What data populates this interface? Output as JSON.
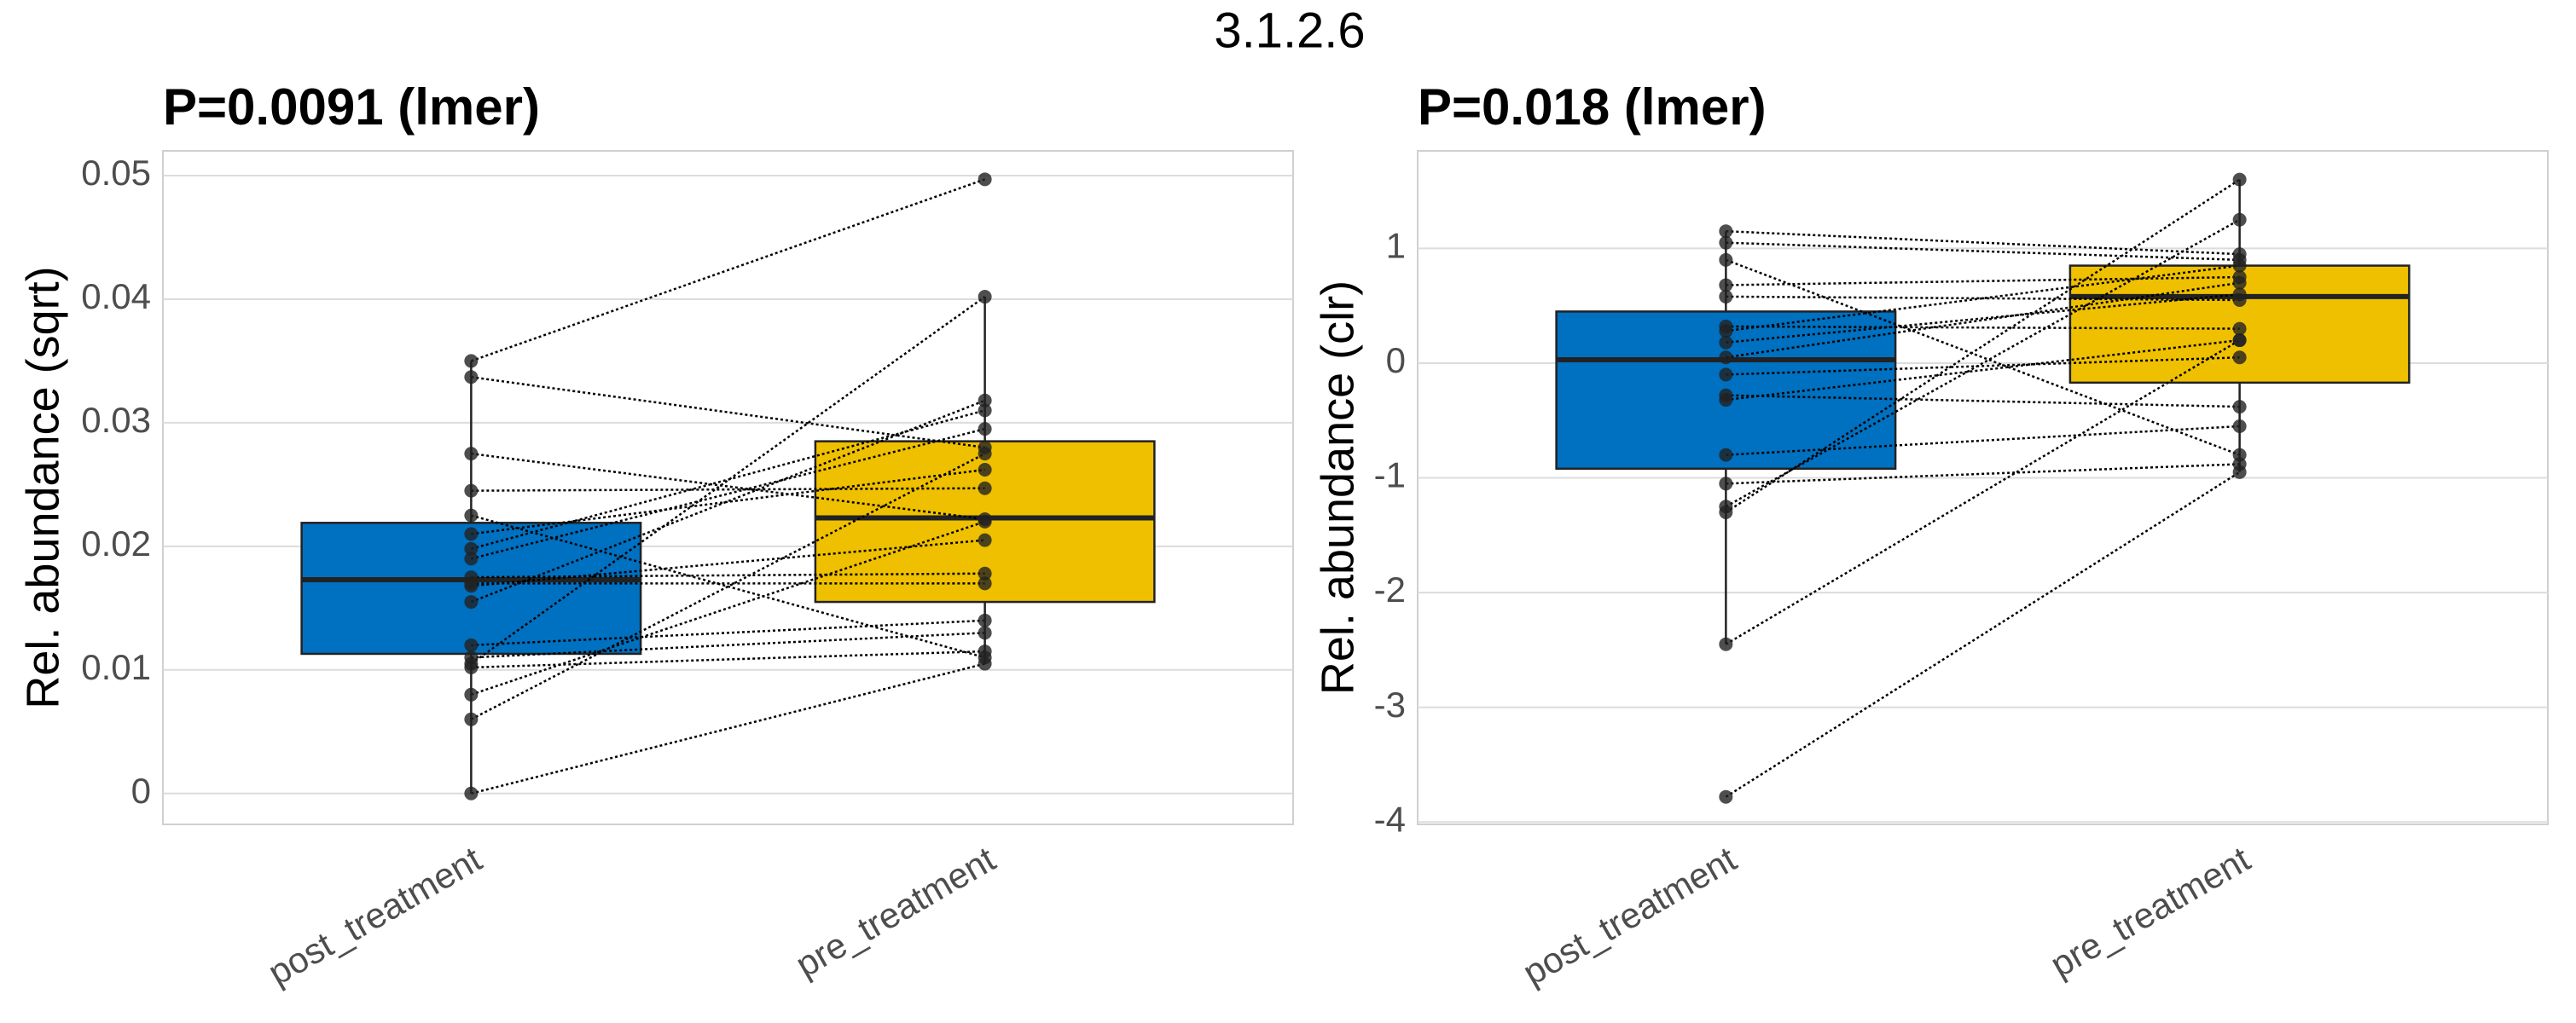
{
  "title": "3.1.2.6",
  "chart_data": [
    {
      "type": "box",
      "title": "P=0.0091 (lmer)",
      "y_label": "Rel. abundance (sqrt)",
      "categories": [
        "post_treatment",
        "pre_treatment"
      ],
      "ylim": [
        -0.0025,
        0.052
      ],
      "yticks": [
        0,
        0.01,
        0.02,
        0.03,
        0.04,
        0.05
      ],
      "grid": true,
      "groups": [
        {
          "color": "#0070c0",
          "box": {
            "min": 0,
            "q1": 0.0113,
            "median": 0.0173,
            "q3": 0.0219,
            "max": 0.035
          },
          "values": [
            0.035,
            0.0337,
            0.0275,
            0.0245,
            0.0225,
            0.021,
            0.0198,
            0.019,
            0.0175,
            0.017,
            0.0168,
            0.0155,
            0.012,
            0.011,
            0.0105,
            0.0102,
            0.008,
            0.006,
            0
          ]
        },
        {
          "color": "#efc000",
          "box": {
            "min": 0.0105,
            "q1": 0.0155,
            "median": 0.0223,
            "q3": 0.0285,
            "max": 0.0402
          },
          "values": [
            0.0497,
            0.028,
            0.0222,
            0.0247,
            0.011,
            0.0262,
            0.031,
            0.0295,
            0.0178,
            0.017,
            0.0205,
            0.0318,
            0.014,
            0.013,
            0.0402,
            0.0115,
            0.022,
            0.0275,
            0.0105
          ]
        }
      ]
    },
    {
      "type": "box",
      "title": "P=0.018 (lmer)",
      "y_label": "Rel. abundance (clr)",
      "categories": [
        "post_treatment",
        "pre_treatment"
      ],
      "ylim": [
        -4.02,
        1.85
      ],
      "yticks": [
        -4,
        -3,
        -2,
        -1,
        0,
        1
      ],
      "grid": true,
      "groups": [
        {
          "color": "#0070c0",
          "box": {
            "min": -2.45,
            "q1": -0.92,
            "median": 0.03,
            "q3": 0.45,
            "max": 1.15
          },
          "values": [
            1.15,
            1.05,
            0.9,
            0.68,
            0.58,
            0.32,
            0.28,
            0.18,
            0.05,
            -0.1,
            -0.28,
            -0.32,
            -0.8,
            -1.05,
            -1.25,
            -1.3,
            -2.45,
            -3.78
          ]
        },
        {
          "color": "#efc000",
          "box": {
            "min": -0.95,
            "q1": -0.17,
            "median": 0.58,
            "q3": 0.85,
            "max": 1.6
          },
          "values": [
            0.95,
            0.9,
            -0.8,
            0.75,
            0.55,
            0.3,
            0.85,
            0.6,
            0.7,
            0.05,
            -0.38,
            0.2,
            -0.55,
            -0.88,
            1.25,
            1.6,
            0.2,
            -0.95
          ]
        }
      ]
    }
  ]
}
